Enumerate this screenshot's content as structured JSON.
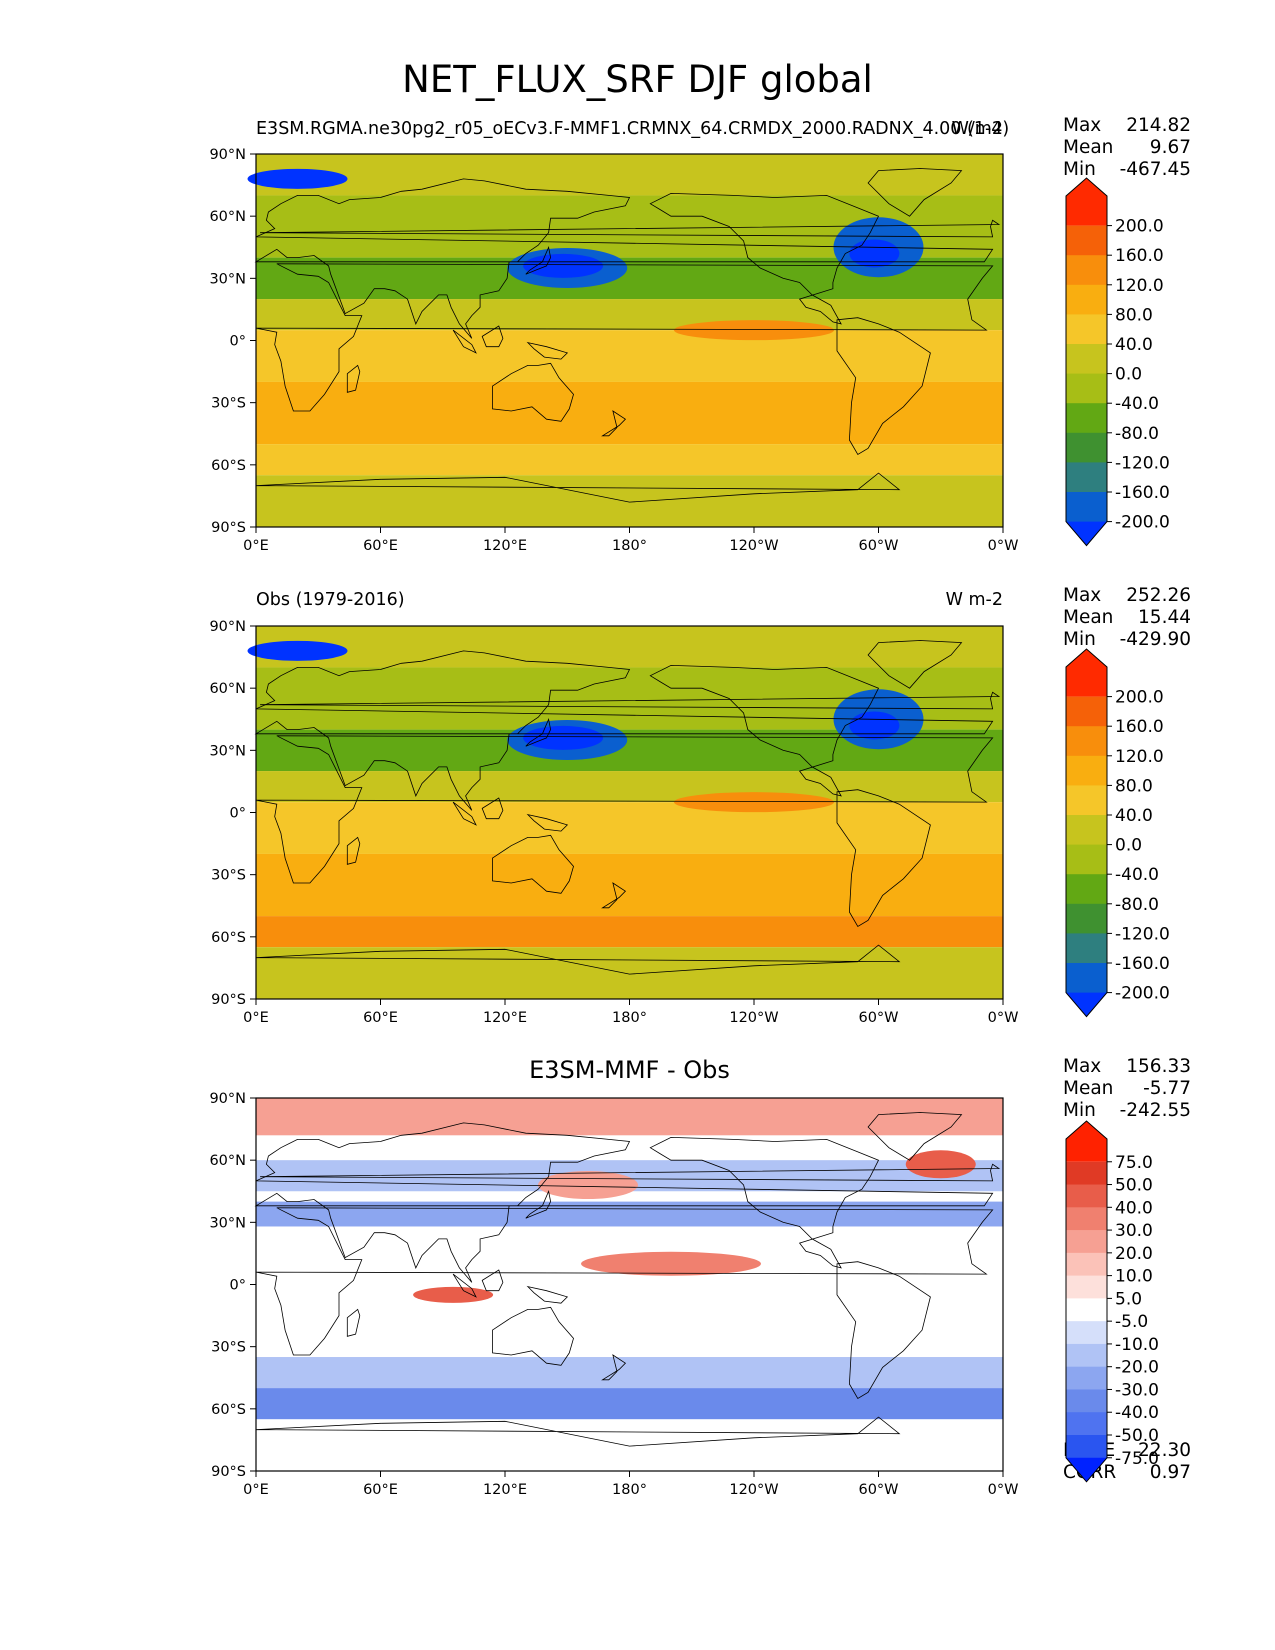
{
  "figure": {
    "title": "NET_FLUX_SRF DJF global"
  },
  "panels": [
    {
      "id": "test",
      "title_left": "E3SM.RGMA.ne30pg2_r05_oECv3.F-MMF1.CRMNX_64.CRMDX_2000.RADNX_4.00 (1-4)",
      "title_right": "W/m2",
      "title_center": "",
      "stats": {
        "max_label": "Max",
        "max": "214.82",
        "mean_label": "Mean",
        "mean": "9.67",
        "min_label": "Min",
        "min": "-467.45"
      },
      "colorbar_ticks": [
        "200.0",
        "160.0",
        "120.0",
        "80.0",
        "40.0",
        "0.0",
        "-40.0",
        "-80.0",
        "-120.0",
        "-160.0",
        "-200.0"
      ],
      "bottom_stats": null
    },
    {
      "id": "ref",
      "title_left": "Obs (1979-2016)",
      "title_right": "W m-2",
      "title_center": "",
      "stats": {
        "max_label": "Max",
        "max": "252.26",
        "mean_label": "Mean",
        "mean": "15.44",
        "min_label": "Min",
        "min": "-429.90"
      },
      "colorbar_ticks": [
        "200.0",
        "160.0",
        "120.0",
        "80.0",
        "40.0",
        "0.0",
        "-40.0",
        "-80.0",
        "-120.0",
        "-160.0",
        "-200.0"
      ],
      "bottom_stats": null
    },
    {
      "id": "diff",
      "title_left": "",
      "title_right": "",
      "title_center": "E3SM-MMF - Obs",
      "stats": {
        "max_label": "Max",
        "max": "156.33",
        "mean_label": "Mean",
        "mean": "-5.77",
        "min_label": "Min",
        "min": "-242.55"
      },
      "colorbar_ticks": [
        "75.0",
        "50.0",
        "40.0",
        "30.0",
        "20.0",
        "10.0",
        "5.0",
        "-5.0",
        "-10.0",
        "-20.0",
        "-30.0",
        "-40.0",
        "-50.0",
        "-75.0"
      ],
      "bottom_stats": {
        "rmse_label": "RMSE",
        "rmse": "22.30",
        "corr_label": "CORR",
        "corr": "0.97"
      }
    }
  ],
  "chart_data": {
    "type": "heatmap",
    "projection": "cylindrical (lat/lon)",
    "x_ticks": [
      "0°E",
      "60°E",
      "120°E",
      "180°",
      "120°W",
      "60°W",
      "0°W"
    ],
    "y_ticks": [
      "90°N",
      "60°N",
      "30°N",
      "0°",
      "30°S",
      "60°S",
      "90°S"
    ],
    "xlim": [
      0,
      360
    ],
    "ylim": [
      -90,
      90
    ],
    "colors": {
      "main": [
        "#0033ff",
        "#0a5fcf",
        "#2e7f7f",
        "#3f9130",
        "#62a814",
        "#a7be16",
        "#c7c41e",
        "#f5c629",
        "#f9ae10",
        "#f88e0c",
        "#f56108",
        "#ff2a00"
      ],
      "diff": [
        "#0022ff",
        "#2a55f0",
        "#4f73f0",
        "#6a8aeb",
        "#8ca6f0",
        "#b0c3f5",
        "#d5dffa",
        "#ffffff",
        "#fde0db",
        "#fbc2b8",
        "#f6a093",
        "#f0806f",
        "#e85d4a",
        "#e03a25",
        "#ff2200"
      ],
      "land_edge": "#000000"
    },
    "levels_main": [
      -200,
      -160,
      -120,
      -80,
      -40,
      0,
      40,
      80,
      120,
      160,
      200
    ],
    "levels_diff": [
      -75,
      -50,
      -40,
      -30,
      -20,
      -10,
      -5,
      5,
      10,
      20,
      30,
      40,
      50,
      75
    ]
  }
}
